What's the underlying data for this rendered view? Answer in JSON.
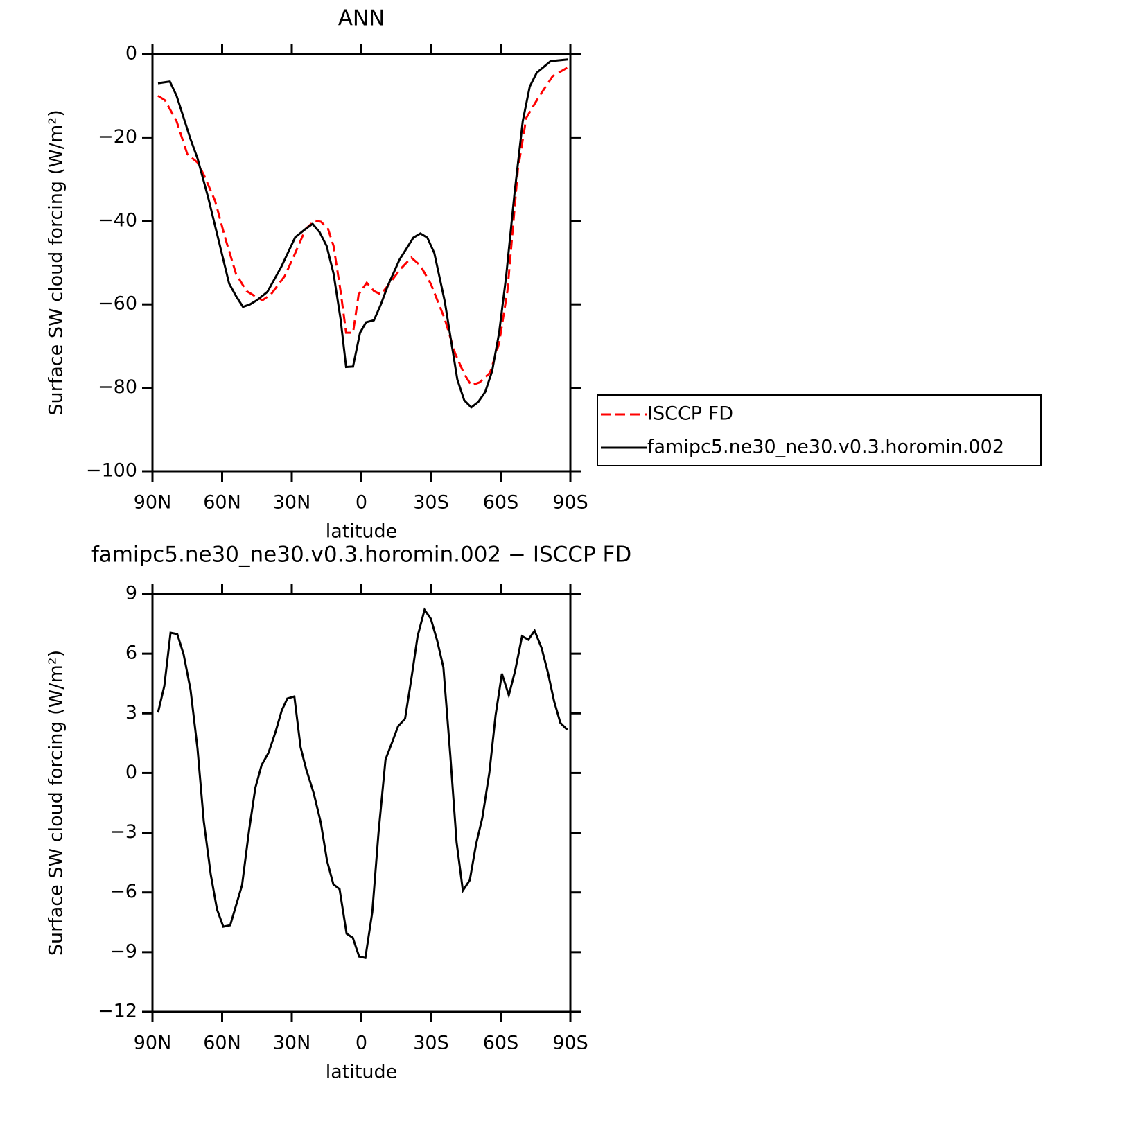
{
  "chart_data": [
    {
      "type": "line",
      "title": "ANN",
      "xlabel": "latitude",
      "ylabel": "Surface SW cloud forcing (W/m²)",
      "xlim": [
        90,
        -90
      ],
      "xticks": [
        {
          "value": 90,
          "label": "90N"
        },
        {
          "value": 60,
          "label": "60N"
        },
        {
          "value": 30,
          "label": "30N"
        },
        0,
        {
          "value": -30,
          "label": "30S"
        },
        {
          "value": -60,
          "label": "60S"
        },
        {
          "value": -90,
          "label": "90S"
        }
      ],
      "ylim": [
        -100,
        0
      ],
      "yticks": [
        {
          "value": -100,
          "label": "−100"
        },
        {
          "value": -80,
          "label": "−80"
        },
        {
          "value": -60,
          "label": "−60"
        },
        {
          "value": -40,
          "label": "−40"
        },
        {
          "value": -20,
          "label": "−20"
        },
        0
      ],
      "legend_position": "right",
      "series": [
        {
          "name": "ISCCP FD",
          "color": "#ff0000",
          "line_style": "dashed",
          "x": [
            87.6,
            84.6,
            79.6,
            75,
            70.6,
            67.5,
            63,
            58.5,
            54,
            49.5,
            45.6,
            42.6,
            39,
            33,
            28.5,
            24,
            20,
            17.4,
            14.4,
            12,
            9,
            6.6,
            3.6,
            1.2,
            -2.3,
            -5.4,
            -8.4,
            -12,
            -16.4,
            -21.5,
            -25.4,
            -29.9,
            -35.9,
            -40.4,
            -44.3,
            -47.3,
            -50.9,
            -55.4,
            -59.3,
            -62.9,
            -67.4,
            -71,
            -76.4,
            -82.4,
            -88.9
          ],
          "values": [
            -10,
            -11.1,
            -16.1,
            -24,
            -26,
            -29.4,
            -35.2,
            -44.4,
            -52.7,
            -56.8,
            -58.1,
            -59,
            -57.6,
            -53.2,
            -47.7,
            -41.9,
            -39.9,
            -40.2,
            -41.9,
            -46,
            -56.8,
            -66.8,
            -66.8,
            -57.6,
            -54.8,
            -56.8,
            -57.6,
            -55.1,
            -51.8,
            -48.8,
            -50.7,
            -55.1,
            -63.5,
            -71.8,
            -76.7,
            -79.4,
            -78.7,
            -76.4,
            -69.3,
            -56.8,
            -27.7,
            -15.3,
            -10.3,
            -5.3,
            -3.2
          ]
        },
        {
          "name": "famipc5.ne30_ne30.v0.3.horomin.002",
          "color": "#000000",
          "line_style": "solid",
          "x": [
            87.6,
            82.5,
            79.6,
            73.6,
            70.6,
            66,
            61.6,
            57,
            54,
            51,
            48,
            45,
            40.5,
            34.5,
            28.5,
            24,
            21,
            18,
            15,
            12,
            9,
            6.6,
            3.6,
            0.6,
            -2,
            -5.4,
            -8.4,
            -11.4,
            -16.4,
            -22.4,
            -25.4,
            -28.4,
            -31.4,
            -35.9,
            -41.3,
            -44.3,
            -47.3,
            -50.3,
            -53.3,
            -56.3,
            -59.3,
            -62.3,
            -65.9,
            -69.5,
            -72.5,
            -75.5,
            -81.5,
            -88.9
          ],
          "values": [
            -7,
            -6.6,
            -10,
            -20.4,
            -25,
            -34.4,
            -44.4,
            -55,
            -58,
            -60.6,
            -60,
            -59,
            -57,
            -51,
            -43.9,
            -41.9,
            -40.7,
            -42.7,
            -46,
            -52.6,
            -63.5,
            -75,
            -74.9,
            -66.8,
            -64.3,
            -63.8,
            -60,
            -55.5,
            -49.3,
            -44,
            -43,
            -44,
            -47.7,
            -59.3,
            -78,
            -83,
            -84.7,
            -83.4,
            -81,
            -76,
            -66.8,
            -53.5,
            -33.6,
            -16.1,
            -7.8,
            -4.5,
            -1.7,
            -1.3
          ]
        }
      ]
    },
    {
      "type": "line",
      "title": "famipc5.ne30_ne30.v0.3.horomin.002 − ISCCP FD",
      "xlabel": "latitude",
      "ylabel": "Surface SW cloud forcing (W/m²)",
      "xlim": [
        90,
        -90
      ],
      "xticks": [
        {
          "value": 90,
          "label": "90N"
        },
        {
          "value": 60,
          "label": "60N"
        },
        {
          "value": 30,
          "label": "30N"
        },
        0,
        {
          "value": -30,
          "label": "30S"
        },
        {
          "value": -60,
          "label": "60S"
        },
        {
          "value": -90,
          "label": "90S"
        }
      ],
      "ylim": [
        -12,
        9
      ],
      "yticks": [
        {
          "value": -12,
          "label": "−12"
        },
        {
          "value": -9,
          "label": "−9"
        },
        {
          "value": -6,
          "label": "−6"
        },
        {
          "value": -3,
          "label": "−3"
        },
        0,
        3,
        6,
        9
      ],
      "series": [
        {
          "color": "#000000",
          "line_style": "solid",
          "x": [
            87.6,
            84.9,
            82.2,
            79.3,
            76.6,
            73.6,
            70.6,
            67.9,
            64.9,
            62.2,
            59.5,
            56.5,
            51.4,
            48.4,
            45.7,
            43,
            40,
            37,
            34.3,
            31.9,
            28.9,
            26.2,
            23.8,
            20.5,
            17.5,
            14.8,
            12.1,
            9.4,
            6.4,
            3.7,
            1,
            -1.7,
            -4.7,
            -7.4,
            -10.4,
            -13.1,
            -15.8,
            -18.8,
            -21.5,
            -24.2,
            -27.2,
            -29.9,
            -32.6,
            -35.3,
            -38.3,
            -41,
            -43.7,
            -46.7,
            -49.4,
            -52.1,
            -55.1,
            -57.8,
            -60.5,
            -63.5,
            -66.2,
            -69.2,
            -71.9,
            -74.6,
            -77.6,
            -80.3,
            -83,
            -85.7,
            -88.7
          ],
          "values": [
            3.04,
            4.37,
            7.05,
            6.98,
            5.97,
            4.19,
            1.23,
            -2.42,
            -5.1,
            -6.85,
            -7.72,
            -7.65,
            -5.63,
            -2.88,
            -0.75,
            0.4,
            1.02,
            2.07,
            3.15,
            3.74,
            3.85,
            1.3,
            0.19,
            -1.03,
            -2.49,
            -4.41,
            -5.59,
            -5.84,
            -8.07,
            -8.28,
            -9.22,
            -9.29,
            -6.99,
            -2.95,
            0.68,
            1.51,
            2.35,
            2.73,
            4.72,
            6.88,
            8.2,
            7.75,
            6.67,
            5.31,
            0.88,
            -3.47,
            -5.91,
            -5.38,
            -3.57,
            -2.25,
            0.01,
            2.9,
            4.99,
            3.91,
            5.13,
            6.88,
            6.7,
            7.15,
            6.28,
            5.06,
            3.6,
            2.52,
            2.17
          ]
        }
      ]
    }
  ]
}
